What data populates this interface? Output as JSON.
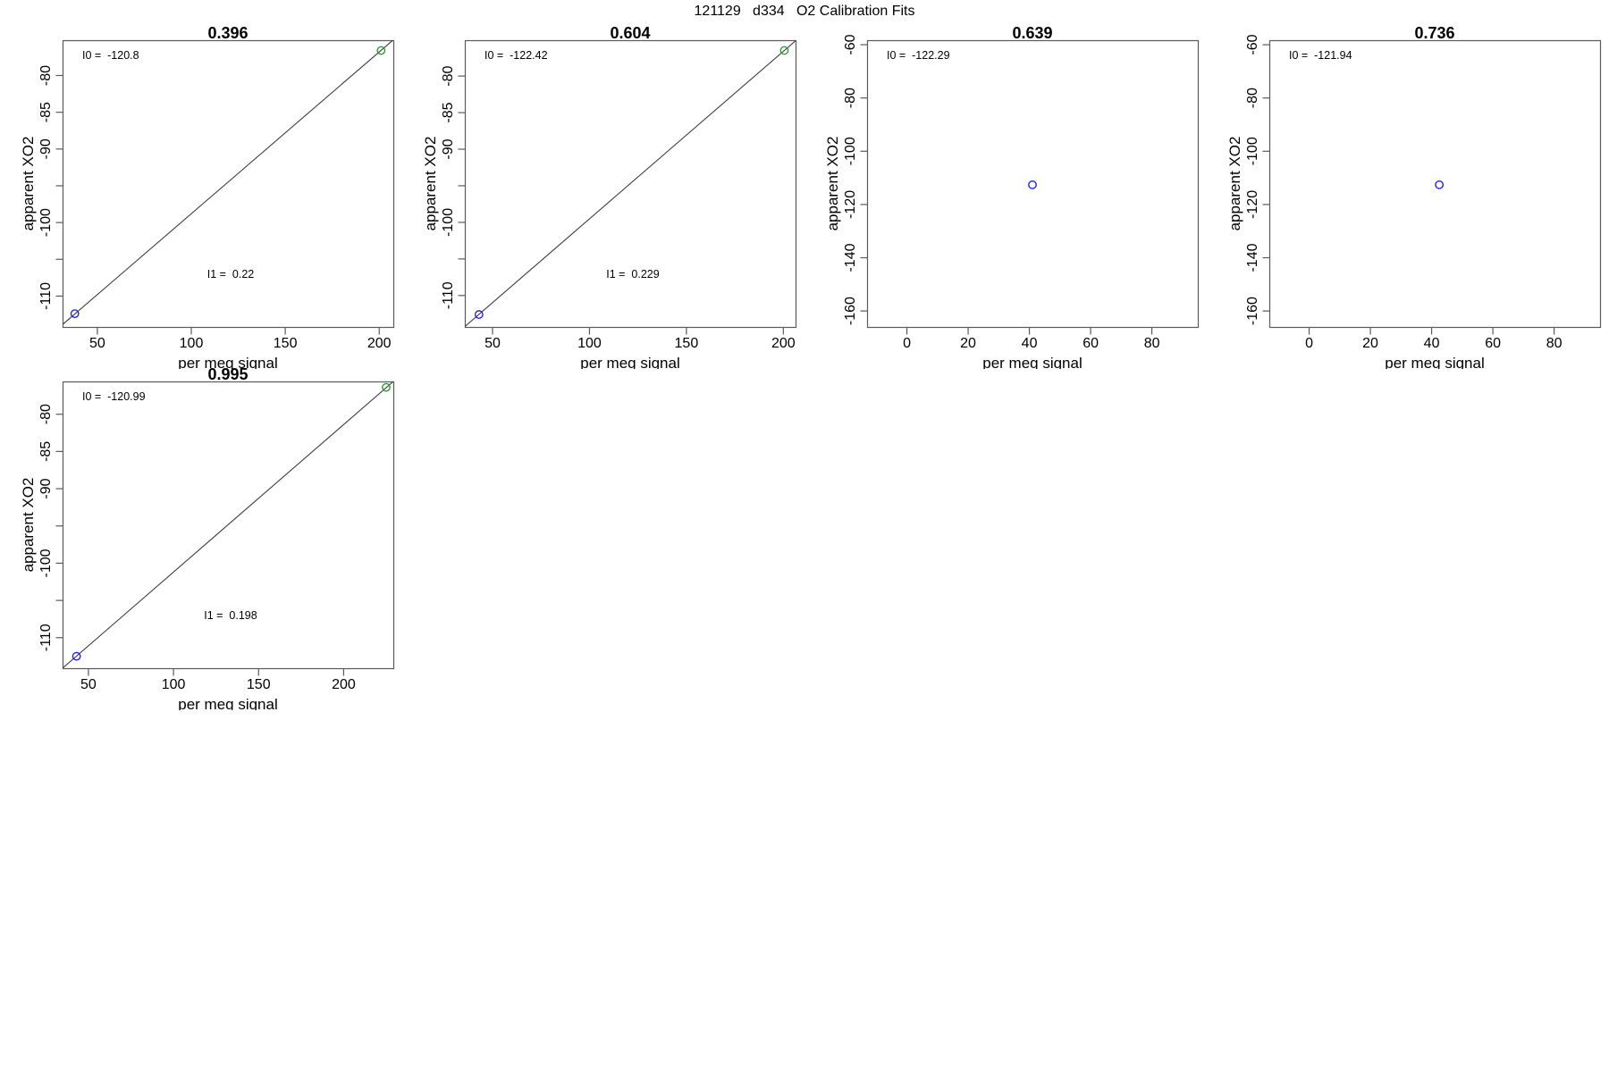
{
  "page_title": "121129   d334   O2 Calibration Fits",
  "colors": {
    "background": "#ffffff",
    "point_blue": "#2222dd",
    "point_green": "#349934",
    "fit_line": "#3d3d3d",
    "box": "#5a5a5a",
    "text": "#000000"
  },
  "chart_data": [
    {
      "type": "scatter",
      "title": "0.396",
      "panel": {
        "row": 0,
        "col": 0
      },
      "xlabel": "per meg signal",
      "ylabel": "apparent XO2",
      "xlim": [
        31.5,
        207.5
      ],
      "ylim": [
        -114.2,
        -75.2
      ],
      "xticks": [
        {
          "v": 50,
          "label": "50"
        },
        {
          "v": 100,
          "label": "100"
        },
        {
          "v": 150,
          "label": "150"
        },
        {
          "v": 200,
          "label": "200"
        }
      ],
      "yticks": [
        {
          "v": -80,
          "label": "-80"
        },
        {
          "v": -85,
          "label": "-85"
        },
        {
          "v": -90,
          "label": "-90"
        },
        {
          "v": -95,
          "label": ""
        },
        {
          "v": -100,
          "label": "-100"
        },
        {
          "v": -105,
          "label": ""
        },
        {
          "v": -110,
          "label": "-110"
        }
      ],
      "fit": {
        "intercept": -120.8,
        "slope": 0.22
      },
      "annotations": {
        "i0": "I0 =  -120.8",
        "i1": "I1 =  0.22"
      },
      "points": [
        {
          "x": 38,
          "y": -112.4,
          "color": "blue"
        },
        {
          "x": 201,
          "y": -76.6,
          "color": "green"
        }
      ],
      "grid": false
    },
    {
      "type": "scatter",
      "title": "0.604",
      "panel": {
        "row": 0,
        "col": 1
      },
      "xlabel": "per meg signal",
      "ylabel": "apparent XO2",
      "xlim": [
        35.7,
        206.3
      ],
      "ylim": [
        -114.3,
        -75.1
      ],
      "xticks": [
        {
          "v": 50,
          "label": "50"
        },
        {
          "v": 100,
          "label": "100"
        },
        {
          "v": 150,
          "label": "150"
        },
        {
          "v": 200,
          "label": "200"
        }
      ],
      "yticks": [
        {
          "v": -80,
          "label": "-80"
        },
        {
          "v": -85,
          "label": "-85"
        },
        {
          "v": -90,
          "label": "-90"
        },
        {
          "v": -95,
          "label": ""
        },
        {
          "v": -100,
          "label": "-100"
        },
        {
          "v": -105,
          "label": ""
        },
        {
          "v": -110,
          "label": "-110"
        }
      ],
      "fit": {
        "intercept": -122.42,
        "slope": 0.229
      },
      "annotations": {
        "i0": "I0 =  -122.42",
        "i1": "I1 =  0.229"
      },
      "points": [
        {
          "x": 43,
          "y": -112.6,
          "color": "blue"
        },
        {
          "x": 200.5,
          "y": -76.5,
          "color": "green"
        }
      ],
      "grid": false
    },
    {
      "type": "scatter",
      "title": "0.639",
      "panel": {
        "row": 0,
        "col": 2
      },
      "xlabel": "per meg signal",
      "ylabel": "apparent XO2",
      "xlim": [
        -13,
        95
      ],
      "ylim": [
        -166,
        -58.3
      ],
      "xticks": [
        {
          "v": 0,
          "label": "0"
        },
        {
          "v": 20,
          "label": "20"
        },
        {
          "v": 40,
          "label": "40"
        },
        {
          "v": 60,
          "label": "60"
        },
        {
          "v": 80,
          "label": "80"
        }
      ],
      "yticks": [
        {
          "v": -60,
          "label": "-60"
        },
        {
          "v": -80,
          "label": "-80"
        },
        {
          "v": -100,
          "label": "-100"
        },
        {
          "v": -120,
          "label": "-120"
        },
        {
          "v": -140,
          "label": "-140"
        },
        {
          "v": -160,
          "label": "-160"
        }
      ],
      "fit": null,
      "annotations": {
        "i0": "I0 =  -122.29",
        "i1": null
      },
      "points": [
        {
          "x": 41,
          "y": -112.6,
          "color": "blue"
        }
      ],
      "grid": false
    },
    {
      "type": "scatter",
      "title": "0.736",
      "panel": {
        "row": 0,
        "col": 3
      },
      "xlabel": "per meg signal",
      "ylabel": "apparent XO2",
      "xlim": [
        -13,
        95
      ],
      "ylim": [
        -166,
        -58.3
      ],
      "xticks": [
        {
          "v": 0,
          "label": "0"
        },
        {
          "v": 20,
          "label": "20"
        },
        {
          "v": 40,
          "label": "40"
        },
        {
          "v": 60,
          "label": "60"
        },
        {
          "v": 80,
          "label": "80"
        }
      ],
      "yticks": [
        {
          "v": -60,
          "label": "-60"
        },
        {
          "v": -80,
          "label": "-80"
        },
        {
          "v": -100,
          "label": "-100"
        },
        {
          "v": -120,
          "label": "-120"
        },
        {
          "v": -140,
          "label": "-140"
        },
        {
          "v": -160,
          "label": "-160"
        }
      ],
      "fit": null,
      "annotations": {
        "i0": "I0 =  -121.94",
        "i1": null
      },
      "points": [
        {
          "x": 42.5,
          "y": -112.6,
          "color": "blue"
        }
      ],
      "grid": false
    },
    {
      "type": "scatter",
      "title": "0.995",
      "panel": {
        "row": 1,
        "col": 0
      },
      "xlabel": "per meg signal",
      "ylabel": "apparent XO2",
      "xlim": [
        34.8,
        229.2
      ],
      "ylim": [
        -114.1,
        -75.6
      ],
      "xticks": [
        {
          "v": 50,
          "label": "50"
        },
        {
          "v": 100,
          "label": "100"
        },
        {
          "v": 150,
          "label": "150"
        },
        {
          "v": 200,
          "label": "200"
        }
      ],
      "yticks": [
        {
          "v": -80,
          "label": "-80"
        },
        {
          "v": -85,
          "label": "-85"
        },
        {
          "v": -90,
          "label": "-90"
        },
        {
          "v": -95,
          "label": ""
        },
        {
          "v": -100,
          "label": "-100"
        },
        {
          "v": -105,
          "label": ""
        },
        {
          "v": -110,
          "label": "-110"
        }
      ],
      "fit": {
        "intercept": -120.99,
        "slope": 0.198
      },
      "annotations": {
        "i0": "I0 =  -120.99",
        "i1": "I1 =  0.198"
      },
      "points": [
        {
          "x": 43,
          "y": -112.5,
          "color": "blue"
        },
        {
          "x": 225,
          "y": -76.4,
          "color": "green"
        }
      ],
      "grid": false
    }
  ]
}
